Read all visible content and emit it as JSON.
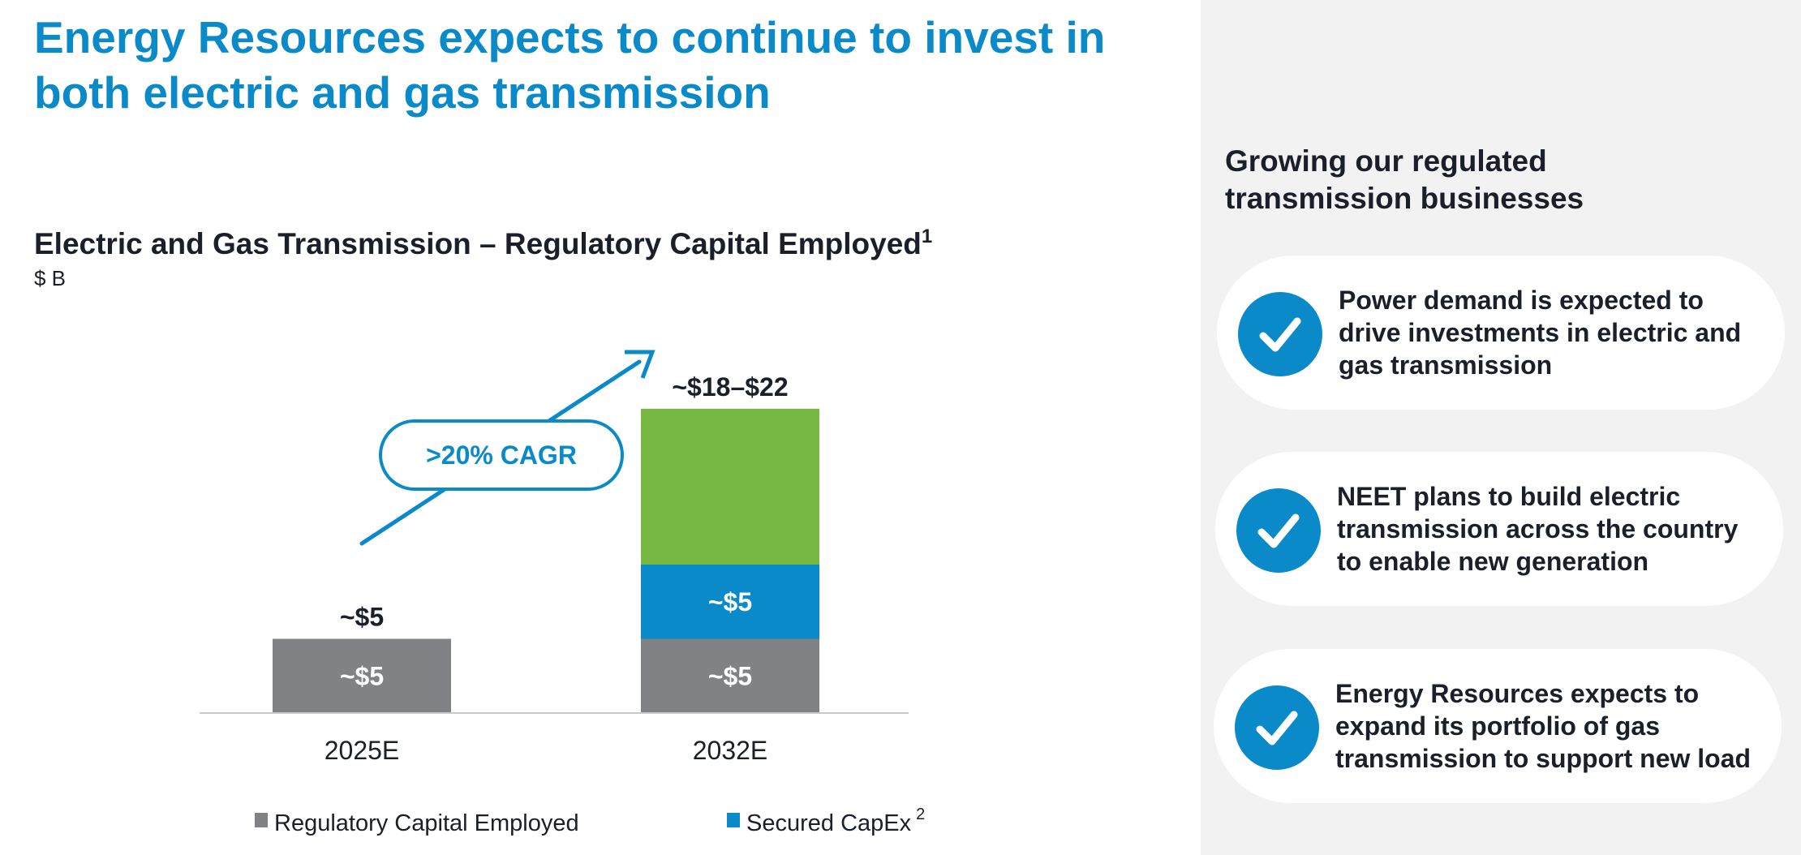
{
  "slide": {
    "title": "Energy Resources expects to continue to invest in both electric and gas transmission"
  },
  "chart_data": {
    "type": "bar",
    "stacked": true,
    "title": "Electric and Gas Transmission – Regulatory Capital Employed",
    "title_footnote": "1",
    "unit": "$ B",
    "categories": [
      "2025E",
      "2032E"
    ],
    "series": [
      {
        "name": "Regulatory Capital Employed",
        "color": "#808286",
        "values": [
          5,
          5
        ],
        "labels": [
          "~$5",
          "~$5"
        ]
      },
      {
        "name": "Secured CapEx",
        "footnote": "2",
        "color": "#0a8ac8",
        "values": [
          0,
          5
        ],
        "labels": [
          "",
          "~$5"
        ]
      },
      {
        "name": "",
        "color": "#76b843",
        "values": [
          0,
          10.5
        ],
        "labels": [
          "",
          ""
        ]
      }
    ],
    "totals": [
      "~$5",
      "~$18–$22"
    ],
    "ylim": [
      0,
      22
    ],
    "annotation": ">20% CAGR",
    "legend": "bottom"
  },
  "panel": {
    "title": "Growing our regulated transmission businesses",
    "items": [
      {
        "text": "Power demand is expected to drive investments in electric and gas transmission",
        "icon": "checkmark-icon"
      },
      {
        "text": "NEET plans to build electric transmission across the country to enable new generation",
        "icon": "checkmark-icon"
      },
      {
        "text": "Energy Resources expects to expand its portfolio of gas transmission to support new load",
        "icon": "checkmark-icon"
      }
    ]
  },
  "colors": {
    "accent": "#0a8ac8",
    "gray": "#808286",
    "green": "#76b843",
    "panel_bg": "#f2f2f2",
    "text": "#1b1f2a"
  }
}
